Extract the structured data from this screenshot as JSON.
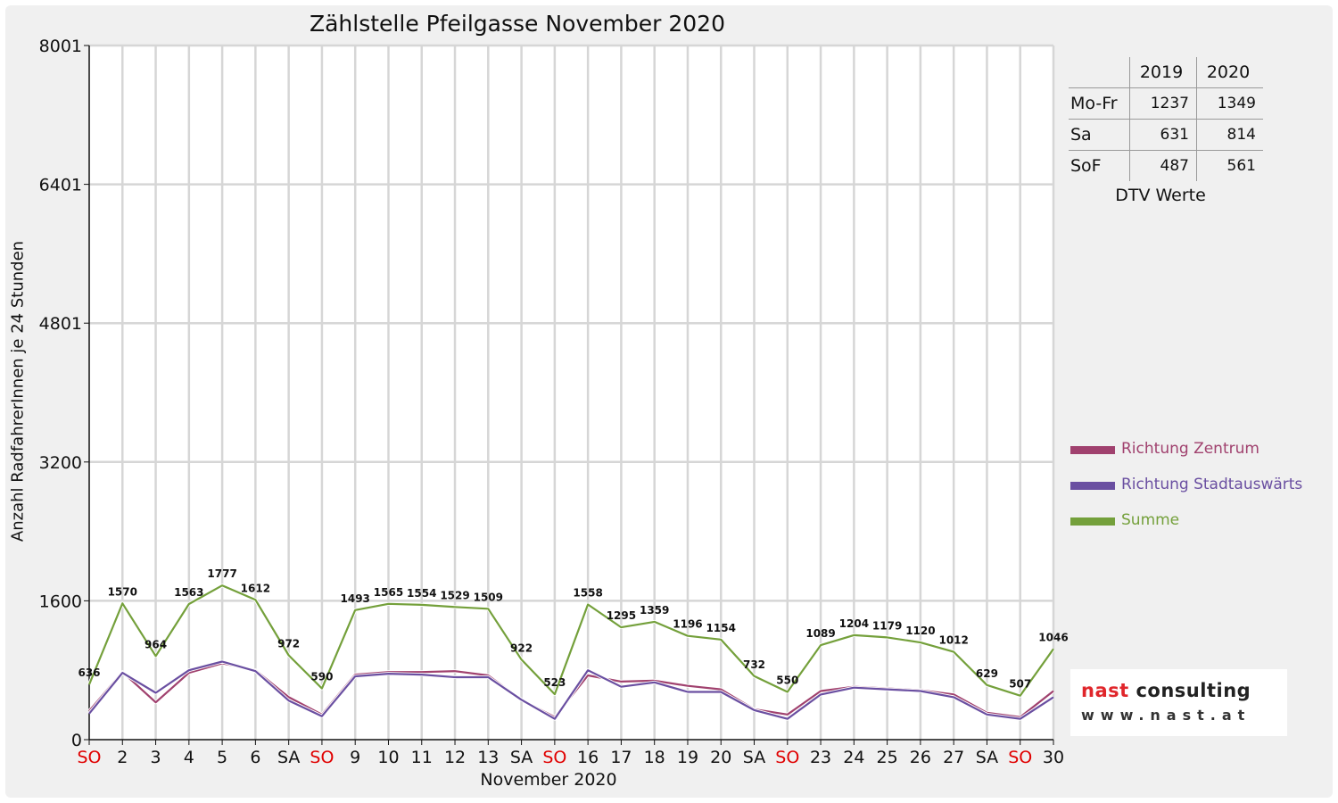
{
  "chart_data": {
    "type": "line",
    "title": "Zählstelle Pfeilgasse November 2020",
    "xlabel": "November 2020",
    "ylabel": "Anzahl RadfahrerInnen je 24 Stunden",
    "ylim": [
      0,
      8001
    ],
    "y_ticks": [
      "0",
      "1600",
      "3200",
      "4801",
      "6401",
      "8001"
    ],
    "grid": true,
    "legend_position": "right",
    "categories": [
      "SO",
      "2",
      "3",
      "4",
      "5",
      "6",
      "SA",
      "SO",
      "9",
      "10",
      "11",
      "12",
      "13",
      "SA",
      "SO",
      "16",
      "17",
      "18",
      "19",
      "20",
      "SA",
      "SO",
      "23",
      "24",
      "25",
      "26",
      "27",
      "SA",
      "SO",
      "30"
    ],
    "weekend_categories_color": "#e00000",
    "weekend_indices": [
      0,
      7,
      14,
      21,
      28
    ],
    "series": [
      {
        "name": "Richtung Zentrum",
        "color": "#a0416e",
        "values": [
          330,
          780,
          430,
          770,
          880,
          800,
          490,
          290,
          750,
          780,
          780,
          790,
          740,
          460,
          260,
          740,
          670,
          680,
          620,
          580,
          350,
          290,
          560,
          610,
          590,
          570,
          520,
          310,
          260,
          560
        ]
      },
      {
        "name": "Richtung Stadtauswärts",
        "color": "#6a4fa1",
        "values": [
          300,
          770,
          540,
          800,
          900,
          790,
          450,
          270,
          730,
          760,
          750,
          720,
          720,
          460,
          240,
          800,
          610,
          660,
          550,
          550,
          340,
          240,
          520,
          600,
          580,
          560,
          490,
          290,
          240,
          490
        ]
      },
      {
        "name": "Summe",
        "color": "#74a03b",
        "values": [
          636,
          1570,
          964,
          1563,
          1777,
          1612,
          972,
          590,
          1493,
          1565,
          1554,
          1529,
          1509,
          922,
          523,
          1558,
          1295,
          1359,
          1196,
          1154,
          732,
          550,
          1089,
          1204,
          1179,
          1120,
          1012,
          629,
          507,
          1046
        ]
      }
    ]
  },
  "dtv_table": {
    "headers": [
      "2019",
      "2020"
    ],
    "rows": [
      {
        "label": "Mo-Fr",
        "v2019": "1237",
        "v2020": "1349"
      },
      {
        "label": "Sa",
        "v2019": "631",
        "v2020": "814"
      },
      {
        "label": "SoF",
        "v2019": "487",
        "v2020": "561"
      }
    ],
    "caption": "DTV Werte"
  },
  "logo": {
    "prefix": "nast",
    "suffix": "consulting",
    "web": "www.nast.at"
  }
}
